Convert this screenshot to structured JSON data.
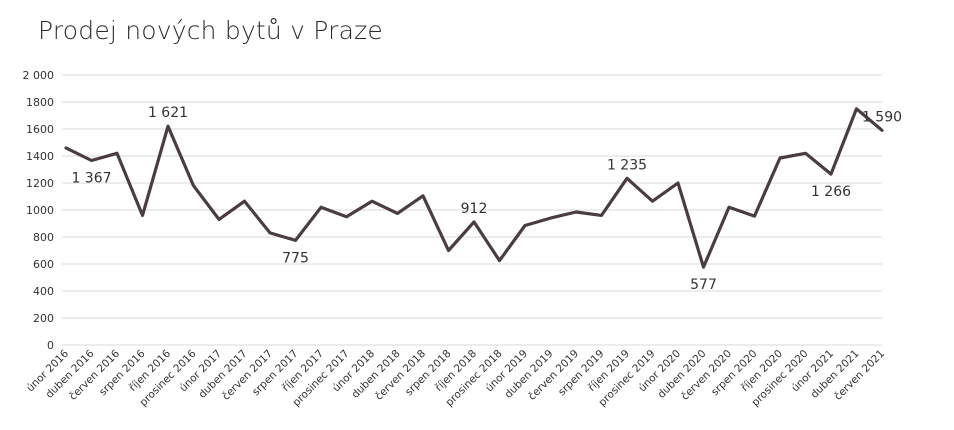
{
  "chart_data": {
    "type": "line",
    "title": "Prodej nových bytů v Praze",
    "xlabel": "",
    "ylabel": "",
    "ylim": [
      0,
      2000
    ],
    "y_ticks": [
      "0",
      "200",
      "400",
      "600",
      "800",
      "1000",
      "1200",
      "1400",
      "1600",
      "1800",
      "2 000"
    ],
    "grid": true,
    "legend": "none",
    "line_color": "#4a3c40",
    "categories": [
      "únor 2016",
      "",
      "duben 2016",
      "",
      "červen 2016",
      "",
      "srpen 2016",
      "",
      "říjen 2016",
      "",
      "prosinec 2016",
      "",
      "únor 2017",
      "",
      "duben 2017",
      "",
      "červen 2017",
      "",
      "srpen 2017",
      "",
      "říjen 2017",
      "",
      "prosinec 2017",
      "",
      "únor 2018",
      "",
      "duben 2018",
      "",
      "červen 2018",
      "",
      "srpen 2018",
      "",
      "říjen 2018",
      "",
      "prosinec 2018",
      "",
      "únor 2019",
      "",
      "duben 2019",
      "",
      "červen 2019",
      "",
      "srpen 2019",
      "",
      "říjen 2019",
      "",
      "prosinec 2019",
      "",
      "únor 2020",
      "",
      "duben 2020",
      "",
      "červen 2020",
      "",
      "srpen 2020",
      "",
      "říjen 2020",
      "",
      "prosinec 2020",
      "",
      "únor 2021",
      "",
      "duben 2021",
      "",
      "červen 2021"
    ],
    "series": [
      {
        "name": "",
        "x": [
          0,
          2,
          4,
          6,
          8,
          10,
          12,
          14,
          16,
          18,
          20,
          22,
          24,
          26,
          28,
          30,
          32,
          34,
          36,
          38,
          40,
          42,
          44,
          46,
          48,
          50,
          52,
          54,
          56,
          58,
          60,
          62,
          64
        ],
        "values": [
          1460,
          1367,
          1420,
          960,
          1621,
          1180,
          930,
          1065,
          830,
          775,
          1020,
          950,
          1065,
          975,
          1105,
          700,
          912,
          625,
          885,
          940,
          985,
          960,
          1235,
          1065,
          1200,
          577,
          1020,
          955,
          1385,
          1420,
          1266,
          1750,
          1590
        ]
      }
    ],
    "annotations": [
      {
        "index": 1,
        "text": "1 367",
        "position": "below"
      },
      {
        "index": 4,
        "text": "1 621",
        "position": "above"
      },
      {
        "index": 9,
        "text": "775",
        "position": "below"
      },
      {
        "index": 16,
        "text": "912",
        "position": "above"
      },
      {
        "index": 22,
        "text": "1 235",
        "position": "above"
      },
      {
        "index": 25,
        "text": "577",
        "position": "below"
      },
      {
        "index": 30,
        "text": "1 266",
        "position": "below"
      },
      {
        "index": 32,
        "text": "1 590",
        "position": "above"
      }
    ]
  }
}
